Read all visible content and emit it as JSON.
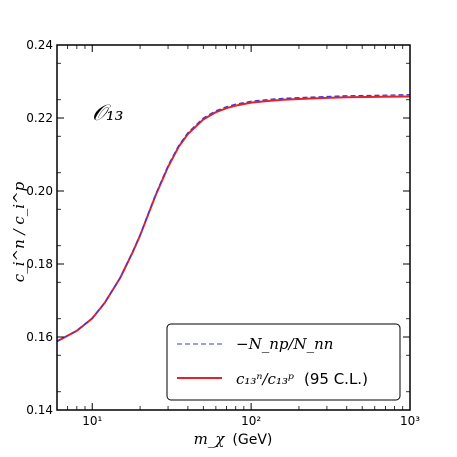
{
  "chart_data": {
    "type": "line",
    "title": "",
    "annotation": "𝒪₁₃",
    "xlabel_symbol": "m_χ",
    "xlabel_unit": "(GeV)",
    "ylabel": "c_i^n / c_i^p",
    "xscale": "log",
    "xlim": [
      6,
      1000
    ],
    "ylim": [
      0.14,
      0.24
    ],
    "grid": false,
    "legend_position": "bottom-right",
    "x_tick_labels": [
      "10¹",
      "10²",
      "10³"
    ],
    "y_tick_labels": [
      "0.14",
      "0.16",
      "0.18",
      "0.20",
      "0.22",
      "0.24"
    ],
    "x_ticks": [
      10,
      100,
      1000
    ],
    "y_ticks": [
      0.14,
      0.16,
      0.18,
      0.2,
      0.22,
      0.24
    ],
    "x": [
      6,
      8,
      10,
      12,
      15,
      18,
      20,
      25,
      30,
      35,
      40,
      50,
      60,
      70,
      80,
      100,
      130,
      160,
      200,
      300,
      400,
      600,
      1000
    ],
    "series": [
      {
        "name": "−N_np/N_nn",
        "style": "dashed",
        "color": "#3a3ad0",
        "values": [
          0.1588,
          0.1618,
          0.1652,
          0.1695,
          0.1763,
          0.1835,
          0.188,
          0.199,
          0.207,
          0.2125,
          0.216,
          0.22,
          0.222,
          0.2231,
          0.2238,
          0.2246,
          0.2251,
          0.2254,
          0.2256,
          0.2259,
          0.2261,
          0.2262,
          0.2264
        ]
      },
      {
        "name": "c_13^n/c_13^p (95 C.L.)",
        "style": "solid",
        "color": "#e8202a",
        "values": [
          0.1588,
          0.1617,
          0.1651,
          0.1694,
          0.1762,
          0.1833,
          0.1878,
          0.1987,
          0.2066,
          0.2121,
          0.2156,
          0.2196,
          0.2216,
          0.2227,
          0.2234,
          0.2242,
          0.2247,
          0.225,
          0.2252,
          0.2255,
          0.2257,
          0.2258,
          0.2259
        ]
      }
    ],
    "legend": {
      "entries": [
        {
          "label": "−N_np/N_nn"
        },
        {
          "label_math": "c₁₃ⁿ/c₁₃ᵖ",
          "label_suffix": "(95 C.L.)"
        }
      ]
    }
  }
}
